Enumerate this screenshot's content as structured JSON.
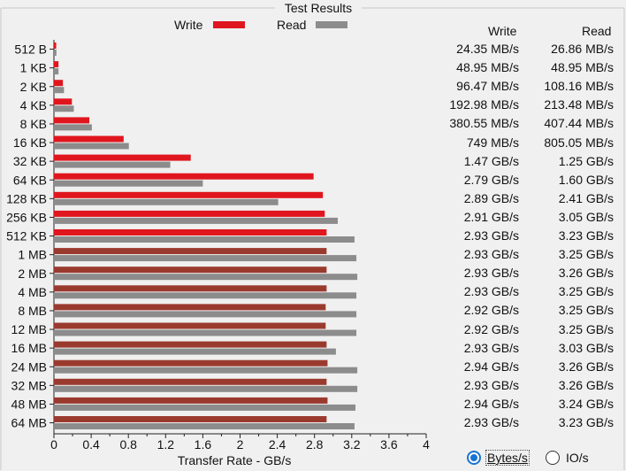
{
  "window": {
    "title": "Test Results"
  },
  "legend": [
    {
      "label": "Write",
      "color": "#e0161e"
    },
    {
      "label": "Read",
      "color": "#8c8c8c"
    }
  ],
  "table": {
    "write_header": "Write",
    "read_header": "Read",
    "rows": [
      {
        "write": "24.35 MB/s",
        "read": "26.86 MB/s"
      },
      {
        "write": "48.95 MB/s",
        "read": "48.95 MB/s"
      },
      {
        "write": "96.47 MB/s",
        "read": "108.16 MB/s"
      },
      {
        "write": "192.98 MB/s",
        "read": "213.48 MB/s"
      },
      {
        "write": "380.55 MB/s",
        "read": "407.44 MB/s"
      },
      {
        "write": "749 MB/s",
        "read": "805.05 MB/s"
      },
      {
        "write": "1.47 GB/s",
        "read": "1.25 GB/s"
      },
      {
        "write": "2.79 GB/s",
        "read": "1.60 GB/s"
      },
      {
        "write": "2.89 GB/s",
        "read": "2.41 GB/s"
      },
      {
        "write": "2.91 GB/s",
        "read": "3.05 GB/s"
      },
      {
        "write": "2.93 GB/s",
        "read": "3.23 GB/s"
      },
      {
        "write": "2.93 GB/s",
        "read": "3.25 GB/s"
      },
      {
        "write": "2.93 GB/s",
        "read": "3.26 GB/s"
      },
      {
        "write": "2.93 GB/s",
        "read": "3.25 GB/s"
      },
      {
        "write": "2.92 GB/s",
        "read": "3.25 GB/s"
      },
      {
        "write": "2.92 GB/s",
        "read": "3.25 GB/s"
      },
      {
        "write": "2.93 GB/s",
        "read": "3.03 GB/s"
      },
      {
        "write": "2.94 GB/s",
        "read": "3.26 GB/s"
      },
      {
        "write": "2.93 GB/s",
        "read": "3.26 GB/s"
      },
      {
        "write": "2.94 GB/s",
        "read": "3.24 GB/s"
      },
      {
        "write": "2.93 GB/s",
        "read": "3.23 GB/s"
      }
    ]
  },
  "units_toggle": {
    "bytes_label": "Bytes/s",
    "io_label": "IO/s",
    "selected": "bytes"
  },
  "chart_data": {
    "type": "bar",
    "orientation": "horizontal",
    "categories": [
      "512 B",
      "1 KB",
      "2 KB",
      "4 KB",
      "8 KB",
      "16 KB",
      "32 KB",
      "64 KB",
      "128 KB",
      "256 KB",
      "512 KB",
      "1 MB",
      "2 MB",
      "4 MB",
      "8 MB",
      "12 MB",
      "16 MB",
      "24 MB",
      "32 MB",
      "48 MB",
      "64 MB"
    ],
    "series": [
      {
        "name": "Write",
        "values": [
          0.02435,
          0.04895,
          0.09647,
          0.19298,
          0.38055,
          0.749,
          1.47,
          2.79,
          2.89,
          2.91,
          2.93,
          2.93,
          2.93,
          2.93,
          2.92,
          2.92,
          2.93,
          2.94,
          2.93,
          2.94,
          2.93
        ]
      },
      {
        "name": "Read",
        "values": [
          0.02686,
          0.04895,
          0.10816,
          0.21348,
          0.40744,
          0.80505,
          1.25,
          1.6,
          2.41,
          3.05,
          3.23,
          3.25,
          3.26,
          3.25,
          3.25,
          3.25,
          3.03,
          3.26,
          3.26,
          3.24,
          3.23
        ]
      }
    ],
    "title": "Test Results",
    "xlabel": "Transfer Rate - GB/s",
    "ylabel": "",
    "xlim": [
      0,
      4
    ],
    "xticks": [
      "0",
      "0.4",
      "0.8",
      "1.2",
      "1.6",
      "2",
      "2.4",
      "2.8",
      "3.2",
      "3.6",
      "4"
    ],
    "legend_position": "top-center",
    "grid": false
  }
}
